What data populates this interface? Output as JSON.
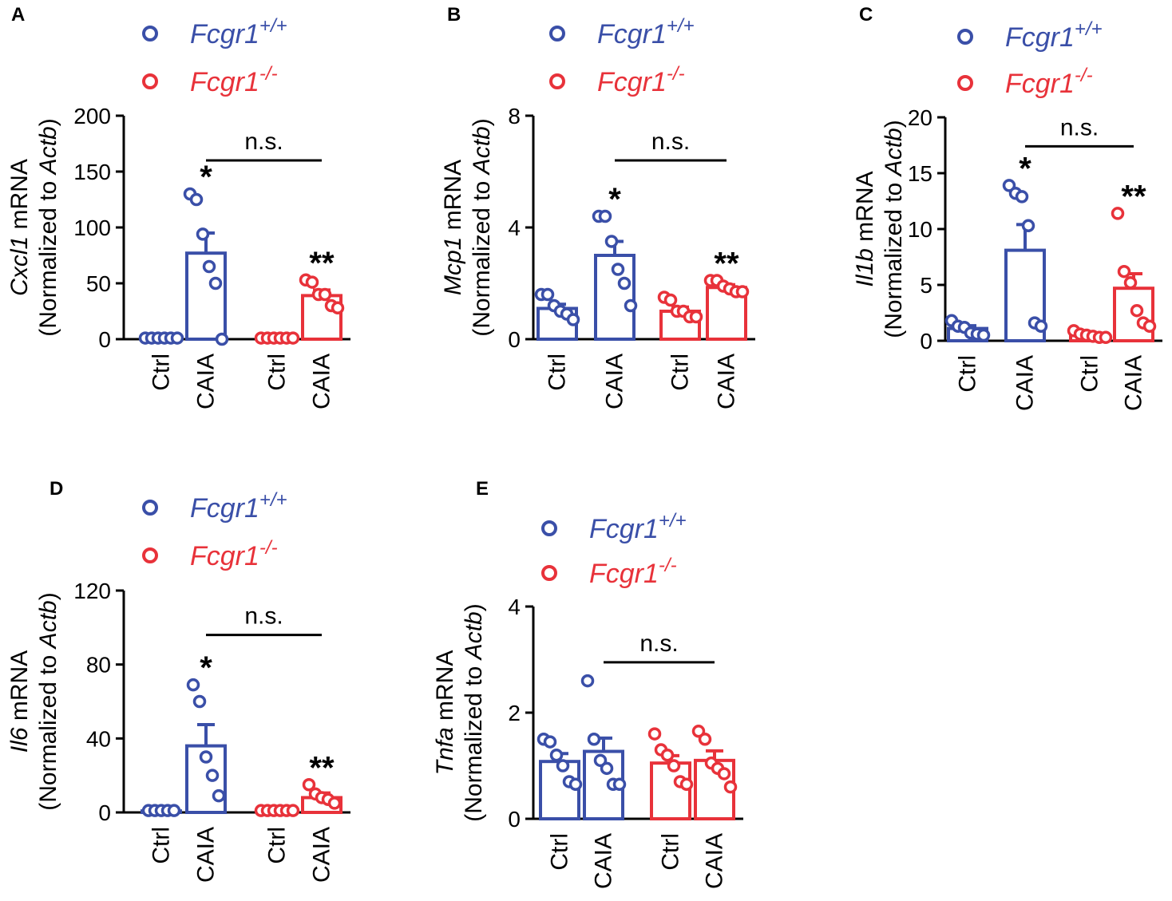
{
  "figure": {
    "colors": {
      "wt": "#3a4fa8",
      "ko": "#e8323a",
      "axis": "#000000"
    },
    "legend": {
      "wt": {
        "prefix": "Fcgr1",
        "sup": "+/+"
      },
      "ko": {
        "prefix": "Fcgr1",
        "sup": "-/-"
      }
    },
    "y_axis_common": "(Normalized to ",
    "y_axis_gene_suffix": " mRNA",
    "y_axis_ref_gene": "Actb",
    "y_axis_close": ")",
    "ns_label": "n.s.",
    "single_star": "*",
    "double_star": "**"
  },
  "chart_data": [
    {
      "panel": "A",
      "type": "bar",
      "gene": "Cxcl1",
      "categories": [
        "Ctrl",
        "CAIA",
        "Ctrl",
        "CAIA"
      ],
      "groups": [
        "wt",
        "wt",
        "ko",
        "ko"
      ],
      "ylim": [
        0,
        200
      ],
      "yticks": [
        0,
        50,
        100,
        150,
        200
      ],
      "means": [
        1,
        77,
        1,
        39
      ],
      "sem": [
        0.5,
        18,
        0.5,
        5
      ],
      "points": [
        [
          1,
          1,
          1,
          1,
          1,
          1
        ],
        [
          130,
          125,
          94,
          65,
          50,
          0
        ],
        [
          1,
          1,
          1,
          1,
          1,
          1
        ],
        [
          53,
          51,
          40,
          40,
          30,
          28
        ]
      ],
      "stars": [
        "",
        "*",
        "",
        "**"
      ],
      "ns": {
        "from": 1,
        "to": 3,
        "y": 160
      }
    },
    {
      "panel": "B",
      "type": "bar",
      "gene": "Mcp1",
      "categories": [
        "Ctrl",
        "CAIA",
        "Ctrl",
        "CAIA"
      ],
      "groups": [
        "wt",
        "wt",
        "ko",
        "ko"
      ],
      "ylim": [
        0,
        8
      ],
      "yticks": [
        0,
        4,
        8
      ],
      "means": [
        1.1,
        3.0,
        1.0,
        1.85
      ],
      "sem": [
        0.15,
        0.5,
        0.15,
        0.1
      ],
      "points": [
        [
          1.6,
          1.6,
          1.2,
          1.0,
          0.9,
          0.7
        ],
        [
          4.4,
          4.4,
          3.5,
          2.5,
          2.0,
          1.2
        ],
        [
          1.5,
          1.4,
          1.0,
          1.0,
          0.8,
          0.8
        ],
        [
          2.1,
          2.1,
          1.9,
          1.8,
          1.7,
          1.7
        ]
      ],
      "stars": [
        "",
        "*",
        "",
        "**"
      ],
      "ns": {
        "from": 1,
        "to": 3,
        "y": 6.4
      }
    },
    {
      "panel": "C",
      "type": "bar",
      "gene": "Il1b",
      "categories": [
        "Ctrl",
        "CAIA",
        "Ctrl",
        "CAIA"
      ],
      "groups": [
        "wt",
        "wt",
        "ko",
        "ko"
      ],
      "ylim": [
        0,
        20
      ],
      "yticks": [
        0,
        5,
        10,
        15,
        20
      ],
      "means": [
        1.1,
        8.1,
        0.5,
        4.7
      ],
      "sem": [
        0.25,
        2.3,
        0.15,
        1.3
      ],
      "points": [
        [
          1.8,
          1.3,
          1.2,
          0.7,
          0.6,
          0.5
        ],
        [
          13.9,
          13.2,
          12.9,
          10.3,
          1.6,
          1.3
        ],
        [
          0.9,
          0.6,
          0.5,
          0.4,
          0.3,
          0.3
        ],
        [
          11.4,
          6.2,
          5.2,
          2.7,
          1.6,
          1.3
        ]
      ],
      "stars": [
        "",
        "*",
        "",
        "**"
      ],
      "ns": {
        "from": 1,
        "to": 3,
        "y": 17.4
      }
    },
    {
      "panel": "D",
      "type": "bar",
      "gene": "Il6",
      "categories": [
        "Ctrl",
        "CAIA",
        "Ctrl",
        "CAIA"
      ],
      "groups": [
        "wt",
        "wt",
        "ko",
        "ko"
      ],
      "ylim": [
        0,
        120
      ],
      "yticks": [
        0,
        40,
        80,
        120
      ],
      "means": [
        0.8,
        36,
        0.8,
        8
      ],
      "sem": [
        0.3,
        11.5,
        0.3,
        2.5
      ],
      "points": [
        [
          1,
          1,
          1,
          1,
          1
        ],
        [
          69,
          60,
          30,
          20,
          9
        ],
        [
          1,
          1,
          1,
          1,
          1,
          1
        ],
        [
          15,
          10,
          8,
          7,
          5
        ]
      ],
      "stars": [
        "",
        "*",
        "",
        "**"
      ],
      "ns": {
        "from": 1,
        "to": 3,
        "y": 96
      }
    },
    {
      "panel": "E",
      "type": "bar",
      "gene": "Tnfa",
      "categories": [
        "Ctrl",
        "CAIA",
        "Ctrl",
        "CAIA"
      ],
      "groups": [
        "wt",
        "wt",
        "ko",
        "ko"
      ],
      "ylim": [
        0,
        4
      ],
      "yticks": [
        0,
        2,
        4
      ],
      "means": [
        1.08,
        1.27,
        1.05,
        1.1
      ],
      "sem": [
        0.15,
        0.25,
        0.14,
        0.18
      ],
      "points": [
        [
          1.5,
          1.45,
          1.2,
          1.0,
          0.7,
          0.65
        ],
        [
          2.6,
          1.5,
          1.1,
          0.95,
          0.65,
          0.65
        ],
        [
          1.6,
          1.3,
          1.2,
          1.0,
          0.7,
          0.65
        ],
        [
          1.65,
          1.5,
          1.05,
          0.95,
          0.85,
          0.6
        ]
      ],
      "stars": [
        "",
        "",
        "",
        ""
      ],
      "ns": {
        "from": 1,
        "to": 3,
        "y": 2.95
      }
    }
  ]
}
